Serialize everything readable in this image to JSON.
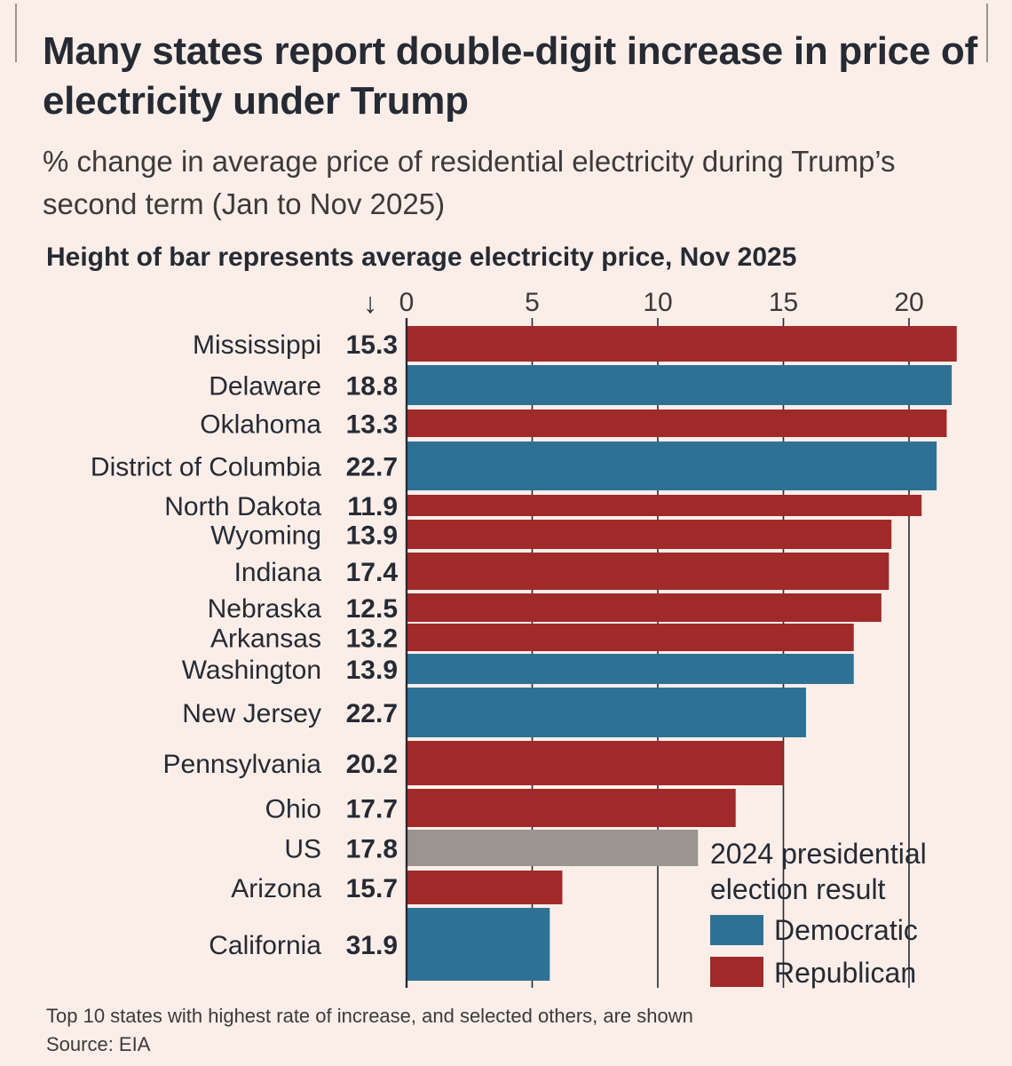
{
  "title": "Many states report double-digit increase in price of electricity under Trump",
  "subtitle": "% change in average price of residential electricity during Trump’s second term (Jan to Nov 2025)",
  "bar_note": "Height of bar represents average electricity price, Nov 2025",
  "arrow_symbol": "↓",
  "legend": {
    "title_line1": "2024 presidential",
    "title_line2": "election result",
    "democratic": "Democratic",
    "republican": "Republican"
  },
  "footnote": {
    "line1": "Top 10 states with highest rate of increase, and selected others, are shown",
    "line2": "Source: EIA"
  },
  "colors": {
    "democratic": "#2f7195",
    "republican": "#a02a2a",
    "us": "#9a9591",
    "background": "#fbeee9"
  },
  "chart_data": {
    "type": "bar",
    "orientation": "horizontal",
    "xlim": [
      0,
      22
    ],
    "xticks": [
      0,
      5,
      10,
      15,
      20
    ],
    "xlabel": "% change in average price of residential electricity",
    "bar_height_meaning": "average electricity price, Nov 2025 (cents/kWh)",
    "series": [
      {
        "name": "Mississippi",
        "pct_change": 21.9,
        "price": "15.3",
        "party": "republican"
      },
      {
        "name": "Delaware",
        "pct_change": 21.7,
        "price": "18.8",
        "party": "democratic"
      },
      {
        "name": "Oklahoma",
        "pct_change": 21.5,
        "price": "13.3",
        "party": "republican"
      },
      {
        "name": "District of Columbia",
        "pct_change": 21.1,
        "price": "22.7",
        "party": "democratic"
      },
      {
        "name": "North Dakota",
        "pct_change": 20.5,
        "price": "11.9",
        "party": "republican"
      },
      {
        "name": "Wyoming",
        "pct_change": 19.3,
        "price": "13.9",
        "party": "republican"
      },
      {
        "name": "Indiana",
        "pct_change": 19.2,
        "price": "17.4",
        "party": "republican"
      },
      {
        "name": "Nebraska",
        "pct_change": 18.9,
        "price": "12.5",
        "party": "republican"
      },
      {
        "name": "Arkansas",
        "pct_change": 17.8,
        "price": "13.2",
        "party": "republican"
      },
      {
        "name": "Washington",
        "pct_change": 17.8,
        "price": "13.9",
        "party": "democratic"
      },
      {
        "name": "New Jersey",
        "pct_change": 15.9,
        "price": "22.7",
        "party": "democratic"
      },
      {
        "name": "Pennsylvania",
        "pct_change": 15.0,
        "price": "20.2",
        "party": "republican"
      },
      {
        "name": "Ohio",
        "pct_change": 13.1,
        "price": "17.7",
        "party": "republican"
      },
      {
        "name": "US",
        "pct_change": 11.6,
        "price": "17.8",
        "party": "us"
      },
      {
        "name": "Arizona",
        "pct_change": 6.2,
        "price": "15.7",
        "party": "republican"
      },
      {
        "name": "California",
        "pct_change": 5.7,
        "price": "31.9",
        "party": "democratic"
      }
    ]
  }
}
